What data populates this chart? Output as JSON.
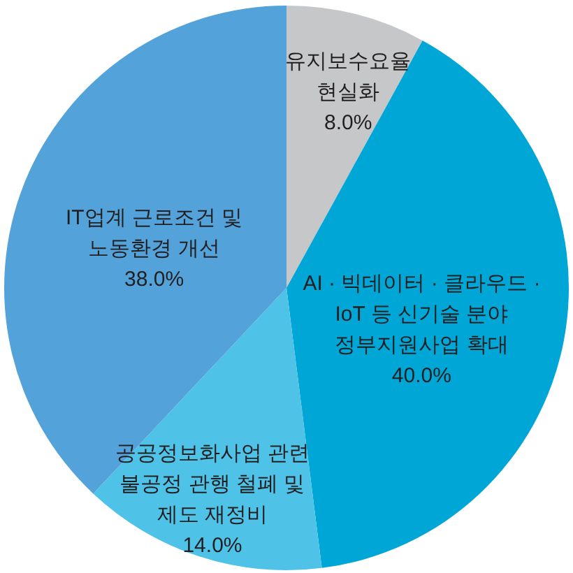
{
  "chart_data": {
    "type": "pie",
    "categories": [
      "유지보수요율 현실화",
      "AI · 빅데이터 · 클라우드 · IoT 등 신기술 분야 정부지원사업 확대",
      "공공정보화사업 관련 불공정 관행 철폐 및 제도 재정비",
      "IT업계 근로조건 및 노동환경 개선"
    ],
    "values": [
      8,
      40,
      14,
      38
    ],
    "value_labels": [
      "8.0%",
      "40.0%",
      "14.0%",
      "38.0%"
    ],
    "colors": [
      "#c5c7c9",
      "#00a6d6",
      "#4ec2e7",
      "#53a2d9"
    ]
  }
}
